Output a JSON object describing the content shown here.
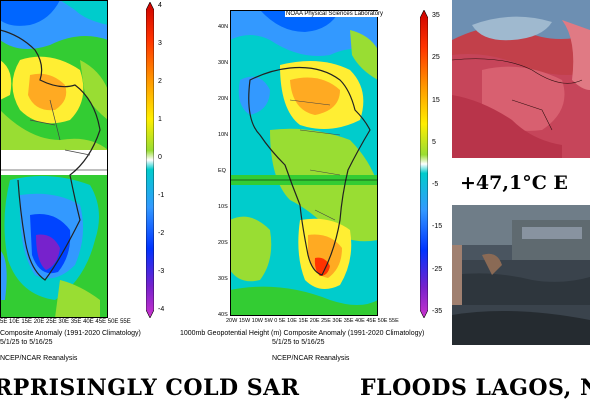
{
  "panel_left": {
    "longitudes": "5E 10E 15E 20E 25E 30E 35E 40E 45E 50E 55E",
    "caption_line1": "Composite Anomaly  (1991-2020 Climatology)",
    "caption_line2": "5/1/25  to  5/16/25",
    "source": "NCEP/NCAR Reanalysis",
    "colorbar_ticks": [
      "4",
      "3",
      "2",
      "1",
      "0",
      "-1",
      "-2",
      "-3",
      "-4"
    ]
  },
  "panel_center": {
    "header": "NOAA Physical Sciences Laboratory",
    "latitudes": [
      "40N",
      "30N",
      "20N",
      "10N",
      "EQ",
      "10S",
      "20S",
      "30S",
      "40S"
    ],
    "longitudes": "20W 15W 10W 5W  0  5E 10E 15E 20E 25E 30E 35E 40E 45E 50E 55E",
    "caption_line1": "1000mb Geopotential Height (m) Composite Anomaly  (1991-2020 Climatology)",
    "caption_line2": "5/1/25  to  5/16/25",
    "source": "NCEP/NCAR Reanalysis",
    "colorbar_ticks": [
      "35",
      "25",
      "15",
      "5",
      "-5",
      "-15",
      "-25",
      "-35"
    ]
  },
  "left_header": "NOAA Physical Sciences Laboratory",
  "temperature_text": "+47,1°C E",
  "headline_left": "RPRISINGLY COLD SAR",
  "headline_right": "FLOODS LAGOS, N"
}
